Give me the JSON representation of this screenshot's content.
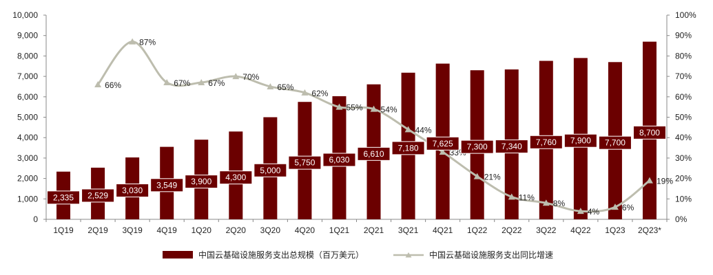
{
  "colors": {
    "bar": "#6b0000",
    "line": "#bdbdae",
    "axis": "#888888",
    "text": "#222222"
  },
  "chart_data": {
    "type": "bar",
    "categories": [
      "1Q19",
      "2Q19",
      "3Q19",
      "4Q19",
      "1Q20",
      "2Q20",
      "3Q20",
      "4Q20",
      "1Q21",
      "2Q21",
      "3Q21",
      "4Q21",
      "1Q22",
      "2Q22",
      "3Q22",
      "4Q22",
      "1Q23",
      "2Q23*"
    ],
    "series": [
      {
        "name": "中国云基础设施服务支出总规模（百万美元）",
        "type": "bar",
        "axis": "left",
        "values": [
          2335,
          2529,
          3030,
          3549,
          3900,
          4300,
          5000,
          5750,
          6030,
          6610,
          7180,
          7625,
          7300,
          7340,
          7760,
          7900,
          7700,
          8700
        ],
        "labels": [
          "2,335",
          "2,529",
          "3,030",
          "3,549",
          "3,900",
          "4,300",
          "5,000",
          "5,750",
          "6,030",
          "6,610",
          "7,180",
          "7,625",
          "7,300",
          "7,340",
          "7,760",
          "7,900",
          "7,700",
          "8,700"
        ]
      },
      {
        "name": "中国云基础设施服务支出同比增速",
        "type": "line",
        "axis": "right",
        "values": [
          null,
          66,
          87,
          67,
          67,
          70,
          65,
          62,
          55,
          54,
          44,
          33,
          21,
          11,
          8,
          4,
          6,
          19
        ],
        "labels": [
          "",
          "66%",
          "87%",
          "67%",
          "67%",
          "70%",
          "65%",
          "62%",
          "55%",
          "54%",
          "44%",
          "33%",
          "21%",
          "11%",
          "8%",
          "4%",
          "6%",
          "19%"
        ]
      }
    ],
    "ylim_left": [
      0,
      10000
    ],
    "ylim_right": [
      0,
      100
    ],
    "yticks_left": [
      "0",
      "1,000",
      "2,000",
      "3,000",
      "4,000",
      "5,000",
      "6,000",
      "7,000",
      "8,000",
      "9,000",
      "10,000"
    ],
    "yticks_right": [
      "0%",
      "10%",
      "20%",
      "30%",
      "40%",
      "50%",
      "60%",
      "70%",
      "80%",
      "90%",
      "100%"
    ],
    "grid": false,
    "legend_position": "bottom"
  }
}
